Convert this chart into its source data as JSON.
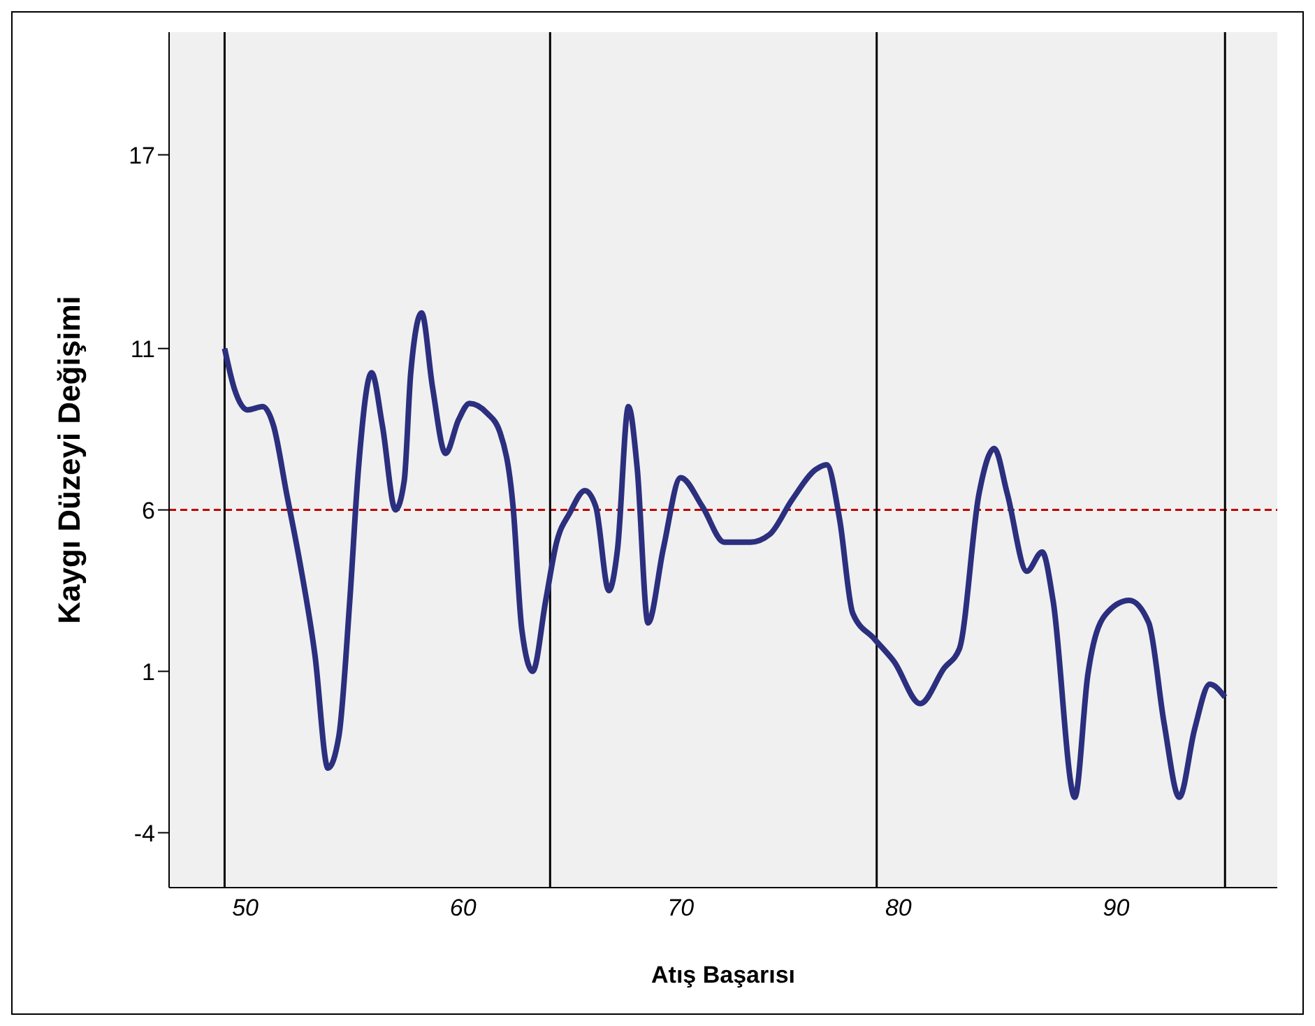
{
  "chart_data": {
    "type": "line",
    "xlabel": "Atış Başarısı",
    "ylabel": "Kaygı Düzeyi Değişimi",
    "x": [
      49.05,
      49.5,
      50.1,
      50.8,
      51.3,
      51.9,
      52.5,
      53.2,
      53.8,
      54.3,
      54.8,
      55.2,
      55.8,
      56.3,
      56.9,
      57.3,
      57.6,
      58.1,
      58.6,
      59.2,
      59.8,
      60.3,
      61.1,
      61.7,
      62.3,
      62.7,
      63.2,
      63.8,
      64.3,
      64.9,
      65.6,
      66.1,
      66.7,
      67.1,
      67.6,
      68.0,
      68.5,
      69.2,
      70.0,
      71.0,
      72.0,
      73.2,
      74.1,
      75.1,
      76.2,
      76.7,
      77.3,
      77.9,
      78.9,
      79.8,
      81.0,
      82.1,
      82.8,
      83.7,
      84.4,
      85.0,
      85.9,
      86.6,
      87.1,
      88.1,
      88.7,
      89.5,
      90.6,
      91.5,
      92.2,
      92.9,
      93.6,
      94.3,
      95.0
    ],
    "series": [
      {
        "color": "#2b2f7e",
        "values": [
          11.0,
          9.75,
          9.1,
          9.2,
          8.6,
          6.5,
          4.4,
          1.5,
          -2.0,
          -1.0,
          3.2,
          7.3,
          10.25,
          8.6,
          6.0,
          6.9,
          10.25,
          12.1,
          9.8,
          7.75,
          8.8,
          9.3,
          9.0,
          8.4,
          6.1,
          2.3,
          1.0,
          3.2,
          5.0,
          5.9,
          6.6,
          6.1,
          3.5,
          4.8,
          9.2,
          7.3,
          2.5,
          4.8,
          7.0,
          6.1,
          5.0,
          5.0,
          5.25,
          6.3,
          7.25,
          7.4,
          5.7,
          2.8,
          2.0,
          1.3,
          0.0,
          1.1,
          1.7,
          6.5,
          7.9,
          6.5,
          4.1,
          4.7,
          3.2,
          -2.9,
          0.9,
          2.75,
          3.2,
          2.5,
          -0.6,
          -2.9,
          -0.8,
          0.6,
          0.2
        ]
      }
    ],
    "xlim": [
      46.5,
      97.4
    ],
    "ylim": [
      -5.7,
      20.8
    ],
    "xticks": [
      50,
      60,
      70,
      80,
      90
    ],
    "yticks": [
      -4,
      1,
      6,
      11,
      17
    ],
    "ref_lines": [
      {
        "axis": "y",
        "value": 6,
        "color": "#c00000",
        "line_style": "dashed"
      },
      {
        "axis": "x",
        "value": 49.05,
        "color": "#000000",
        "line_style": "solid"
      },
      {
        "axis": "x",
        "value": 64.0,
        "color": "#000000",
        "line_style": "solid"
      },
      {
        "axis": "x",
        "value": 79.0,
        "color": "#000000",
        "line_style": "solid"
      },
      {
        "axis": "x",
        "value": 95.0,
        "color": "#000000",
        "line_style": "solid"
      }
    ],
    "grid": false,
    "marker": "none",
    "line_style": "solid"
  }
}
